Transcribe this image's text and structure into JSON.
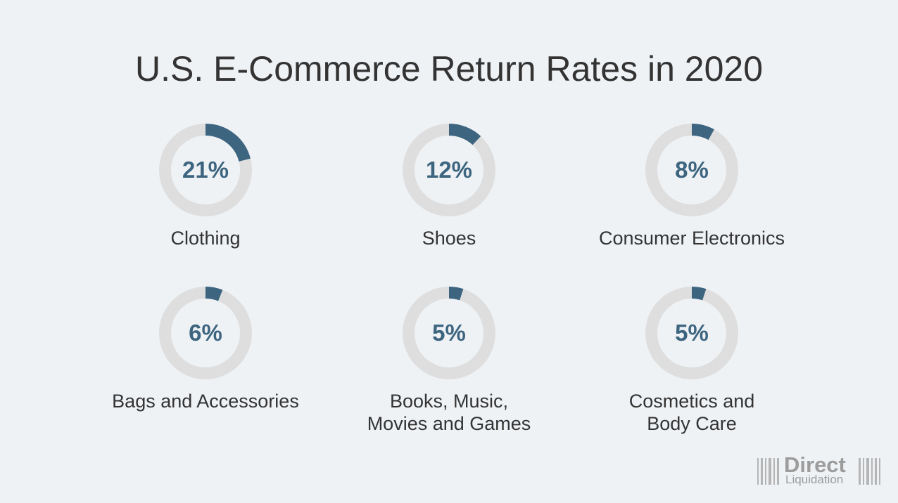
{
  "chart_data": {
    "type": "pie",
    "title": "U.S. E-Commerce Return Rates in 2020",
    "categories": [
      "Clothing",
      "Shoes",
      "Consumer Electronics",
      "Bags and Accessories",
      "Books, Music,\nMovies and Games",
      "Cosmetics and\nBody Care"
    ],
    "values": [
      21,
      12,
      8,
      6,
      5,
      5
    ],
    "labels": [
      "21%",
      "12%",
      "8%",
      "6%",
      "5%",
      "5%"
    ],
    "unit": "%"
  },
  "colors": {
    "accent": "#3d6580",
    "track": "#dedede",
    "background": "#eff2f5",
    "text": "#333333",
    "logo": "#9c9c9c"
  },
  "logo": {
    "line1": "Direct",
    "line2": "Liquidation",
    "icon": "barcode-icon"
  }
}
